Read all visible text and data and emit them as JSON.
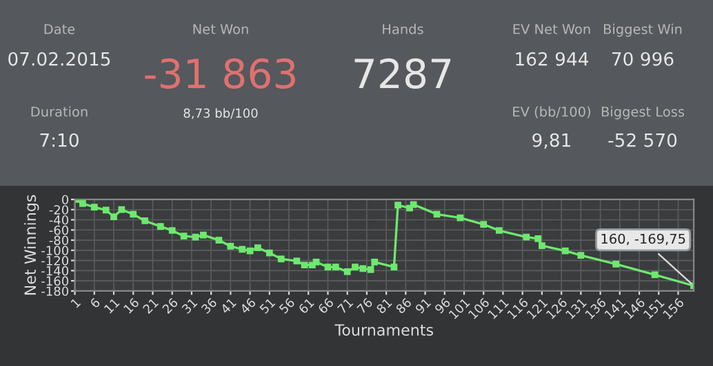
{
  "chart_data": [
    {
      "type": "other",
      "annotations": [
        "Date",
        "07.02.2015",
        "Duration",
        "7:10",
        "Net Won",
        "-31 863",
        "8,73 bb/100",
        "Hands",
        "7287",
        "EV Net Won",
        "162 944",
        "Biggest Win",
        "70 996",
        "EV (bb/100)",
        "9,81",
        "Biggest Loss",
        "-52 570"
      ]
    },
    {
      "type": "line",
      "xlabel": "Tournaments",
      "ylabel": "Net Winnings",
      "x": [
        1,
        3,
        6,
        9,
        11,
        13,
        16,
        19,
        23,
        26,
        29,
        32,
        34,
        38,
        41,
        44,
        46,
        48,
        51,
        54,
        58,
        60,
        62,
        63,
        66,
        68,
        71,
        73,
        75,
        77,
        78,
        83,
        84,
        87,
        88,
        94,
        100,
        106,
        110,
        117,
        120,
        121,
        127,
        131,
        140,
        150,
        160
      ],
      "series": [
        {
          "color": "#6ee86e",
          "values": [
            0,
            -8,
            -15,
            -21,
            -34,
            -20,
            -29,
            -42,
            -53,
            -61,
            -72,
            -74,
            -70,
            -80,
            -92,
            -98,
            -101,
            -95,
            -105,
            -117,
            -121,
            -129,
            -129,
            -123,
            -133,
            -133,
            -142,
            -133,
            -136,
            -138,
            -123,
            -133,
            -11,
            -17,
            -10,
            -29,
            -36,
            -49,
            -61,
            -74,
            -77,
            -91,
            -101,
            -110,
            -127,
            -148,
            -169.75
          ]
        }
      ],
      "xlim": [
        1,
        160
      ],
      "xticks": [
        1,
        6,
        11,
        16,
        21,
        26,
        31,
        36,
        41,
        46,
        51,
        56,
        61,
        66,
        71,
        76,
        81,
        86,
        91,
        96,
        101,
        106,
        111,
        116,
        121,
        126,
        131,
        136,
        141,
        146,
        151,
        156
      ],
      "ylim": [
        -180,
        0
      ],
      "yticks": [
        0,
        -20,
        -40,
        -60,
        -80,
        -100,
        -120,
        -140,
        -160,
        -180
      ],
      "grid": true,
      "marker": "square",
      "line_style": "solid",
      "annotations": [
        {
          "text": "160, -169,75",
          "x": 160,
          "y": -169.75
        }
      ]
    }
  ]
}
